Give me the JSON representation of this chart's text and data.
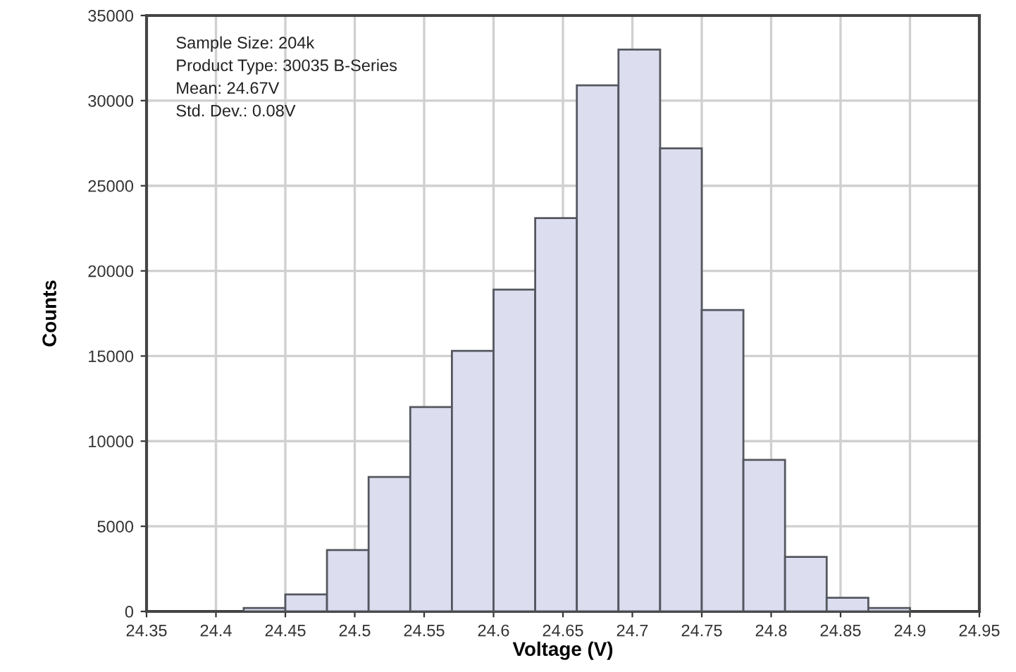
{
  "chart_data": {
    "type": "histogram",
    "xlabel": "Voltage (V)",
    "ylabel": "Counts",
    "annotations": [
      "Sample Size: 204k",
      "Product Type: 30035 B-Series",
      "Mean: 24.67V",
      "Std. Dev.: 0.08V"
    ],
    "bins": [
      24.42,
      24.45,
      24.48,
      24.51,
      24.54,
      24.57,
      24.6,
      24.63,
      24.66,
      24.69,
      24.72,
      24.75,
      24.78,
      24.81,
      24.84,
      24.87,
      24.9
    ],
    "values": [
      200,
      1000,
      3600,
      7900,
      12000,
      15300,
      18900,
      23100,
      30900,
      33000,
      27200,
      17700,
      8900,
      3200,
      800,
      200
    ],
    "color": "#dcdef0",
    "xlim": [
      24.35,
      24.95
    ],
    "xticks": [
      24.35,
      24.4,
      24.45,
      24.5,
      24.55,
      24.6,
      24.65,
      24.7,
      24.75,
      24.8,
      24.85,
      24.9,
      24.95
    ],
    "ylim": [
      0,
      35000
    ],
    "yticks": [
      0,
      5000,
      10000,
      15000,
      20000,
      25000,
      30000,
      35000
    ],
    "grid": true
  }
}
